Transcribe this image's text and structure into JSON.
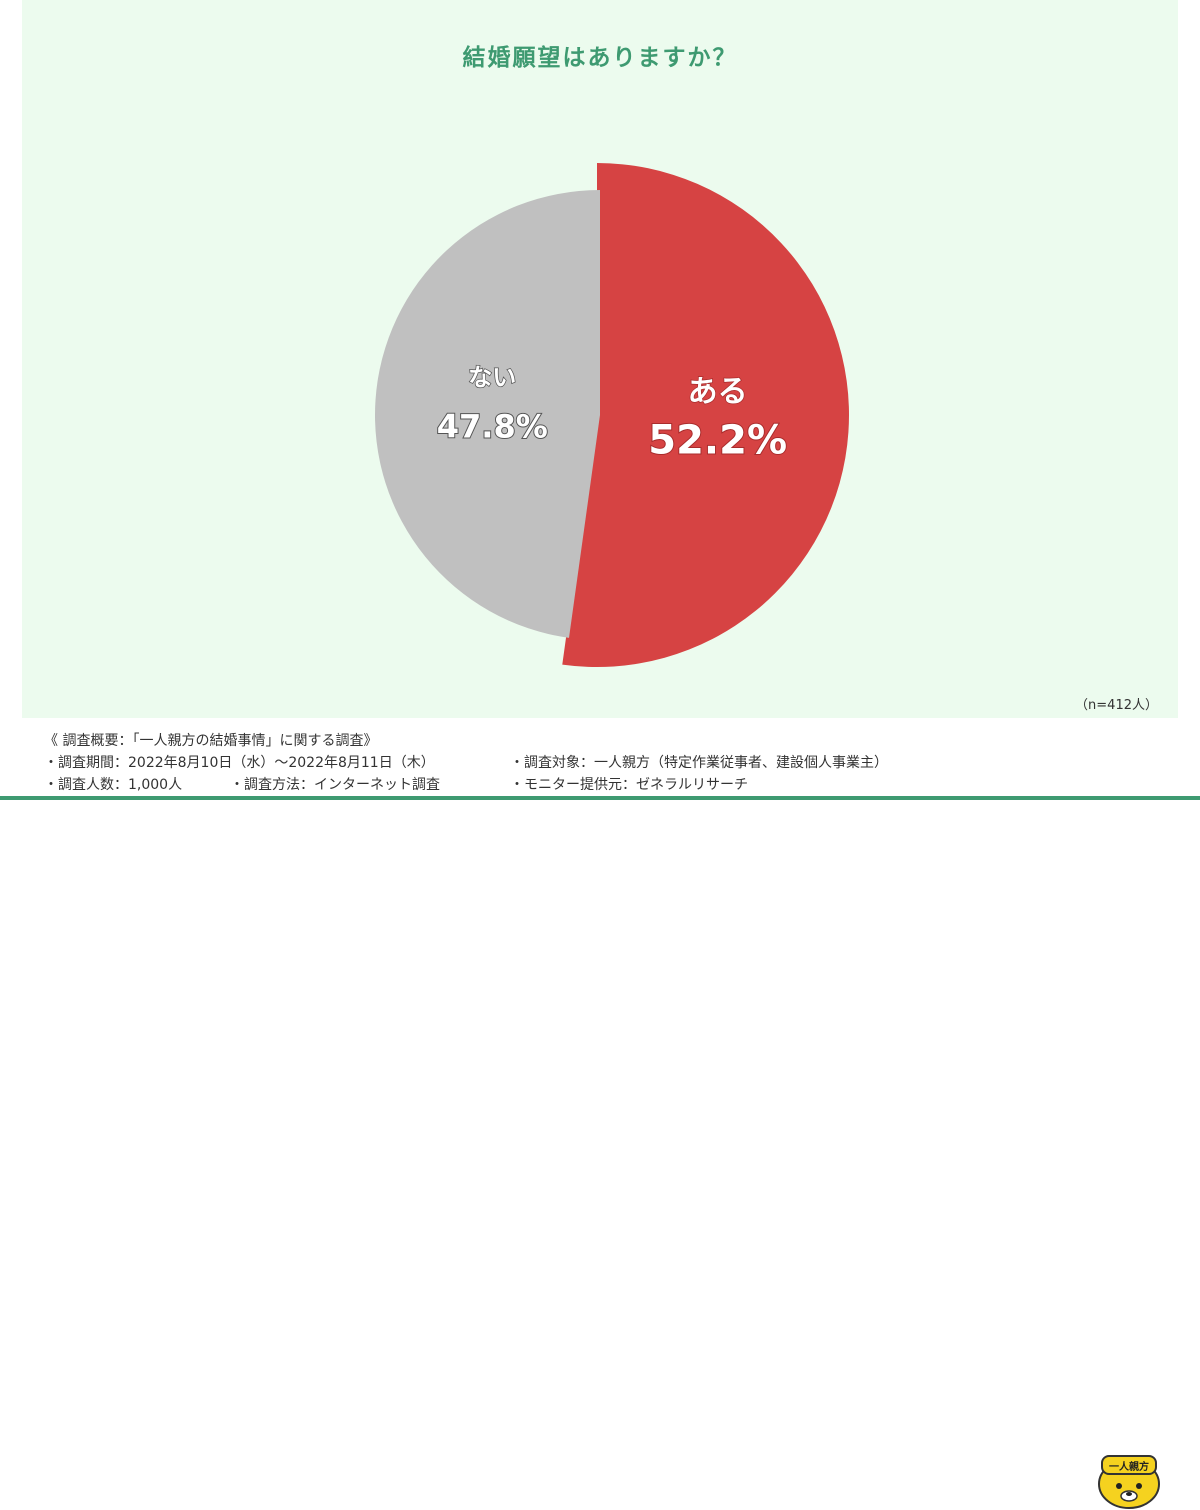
{
  "chart_data": {
    "type": "pie",
    "title": "結婚願望はありますか？",
    "start": "top",
    "direction": "clockwise",
    "slices": [
      {
        "label": "ある",
        "value": 52.2,
        "value_label": "52.2%",
        "color": "#d64343"
      },
      {
        "label": "ない",
        "value": 47.8,
        "value_label": "47.8%",
        "color": "#c0c0c0"
      }
    ],
    "n_note": "（n=412人）"
  },
  "footer": {
    "overview": "《 調査概要：「一人親方の結婚事情」に関する調査》",
    "period": "・調査期間：2022年8月10日（水）～2022年8月11日（木）",
    "target": "・調査対象：一人親方（特定作業従事者、建設個人事業主）",
    "count": "・調査人数：1,000人",
    "method": "・調査方法：インターネット調査",
    "provider": "・モニター提供元：ゼネラルリサーチ"
  },
  "logo": {
    "text": "一人親方"
  }
}
